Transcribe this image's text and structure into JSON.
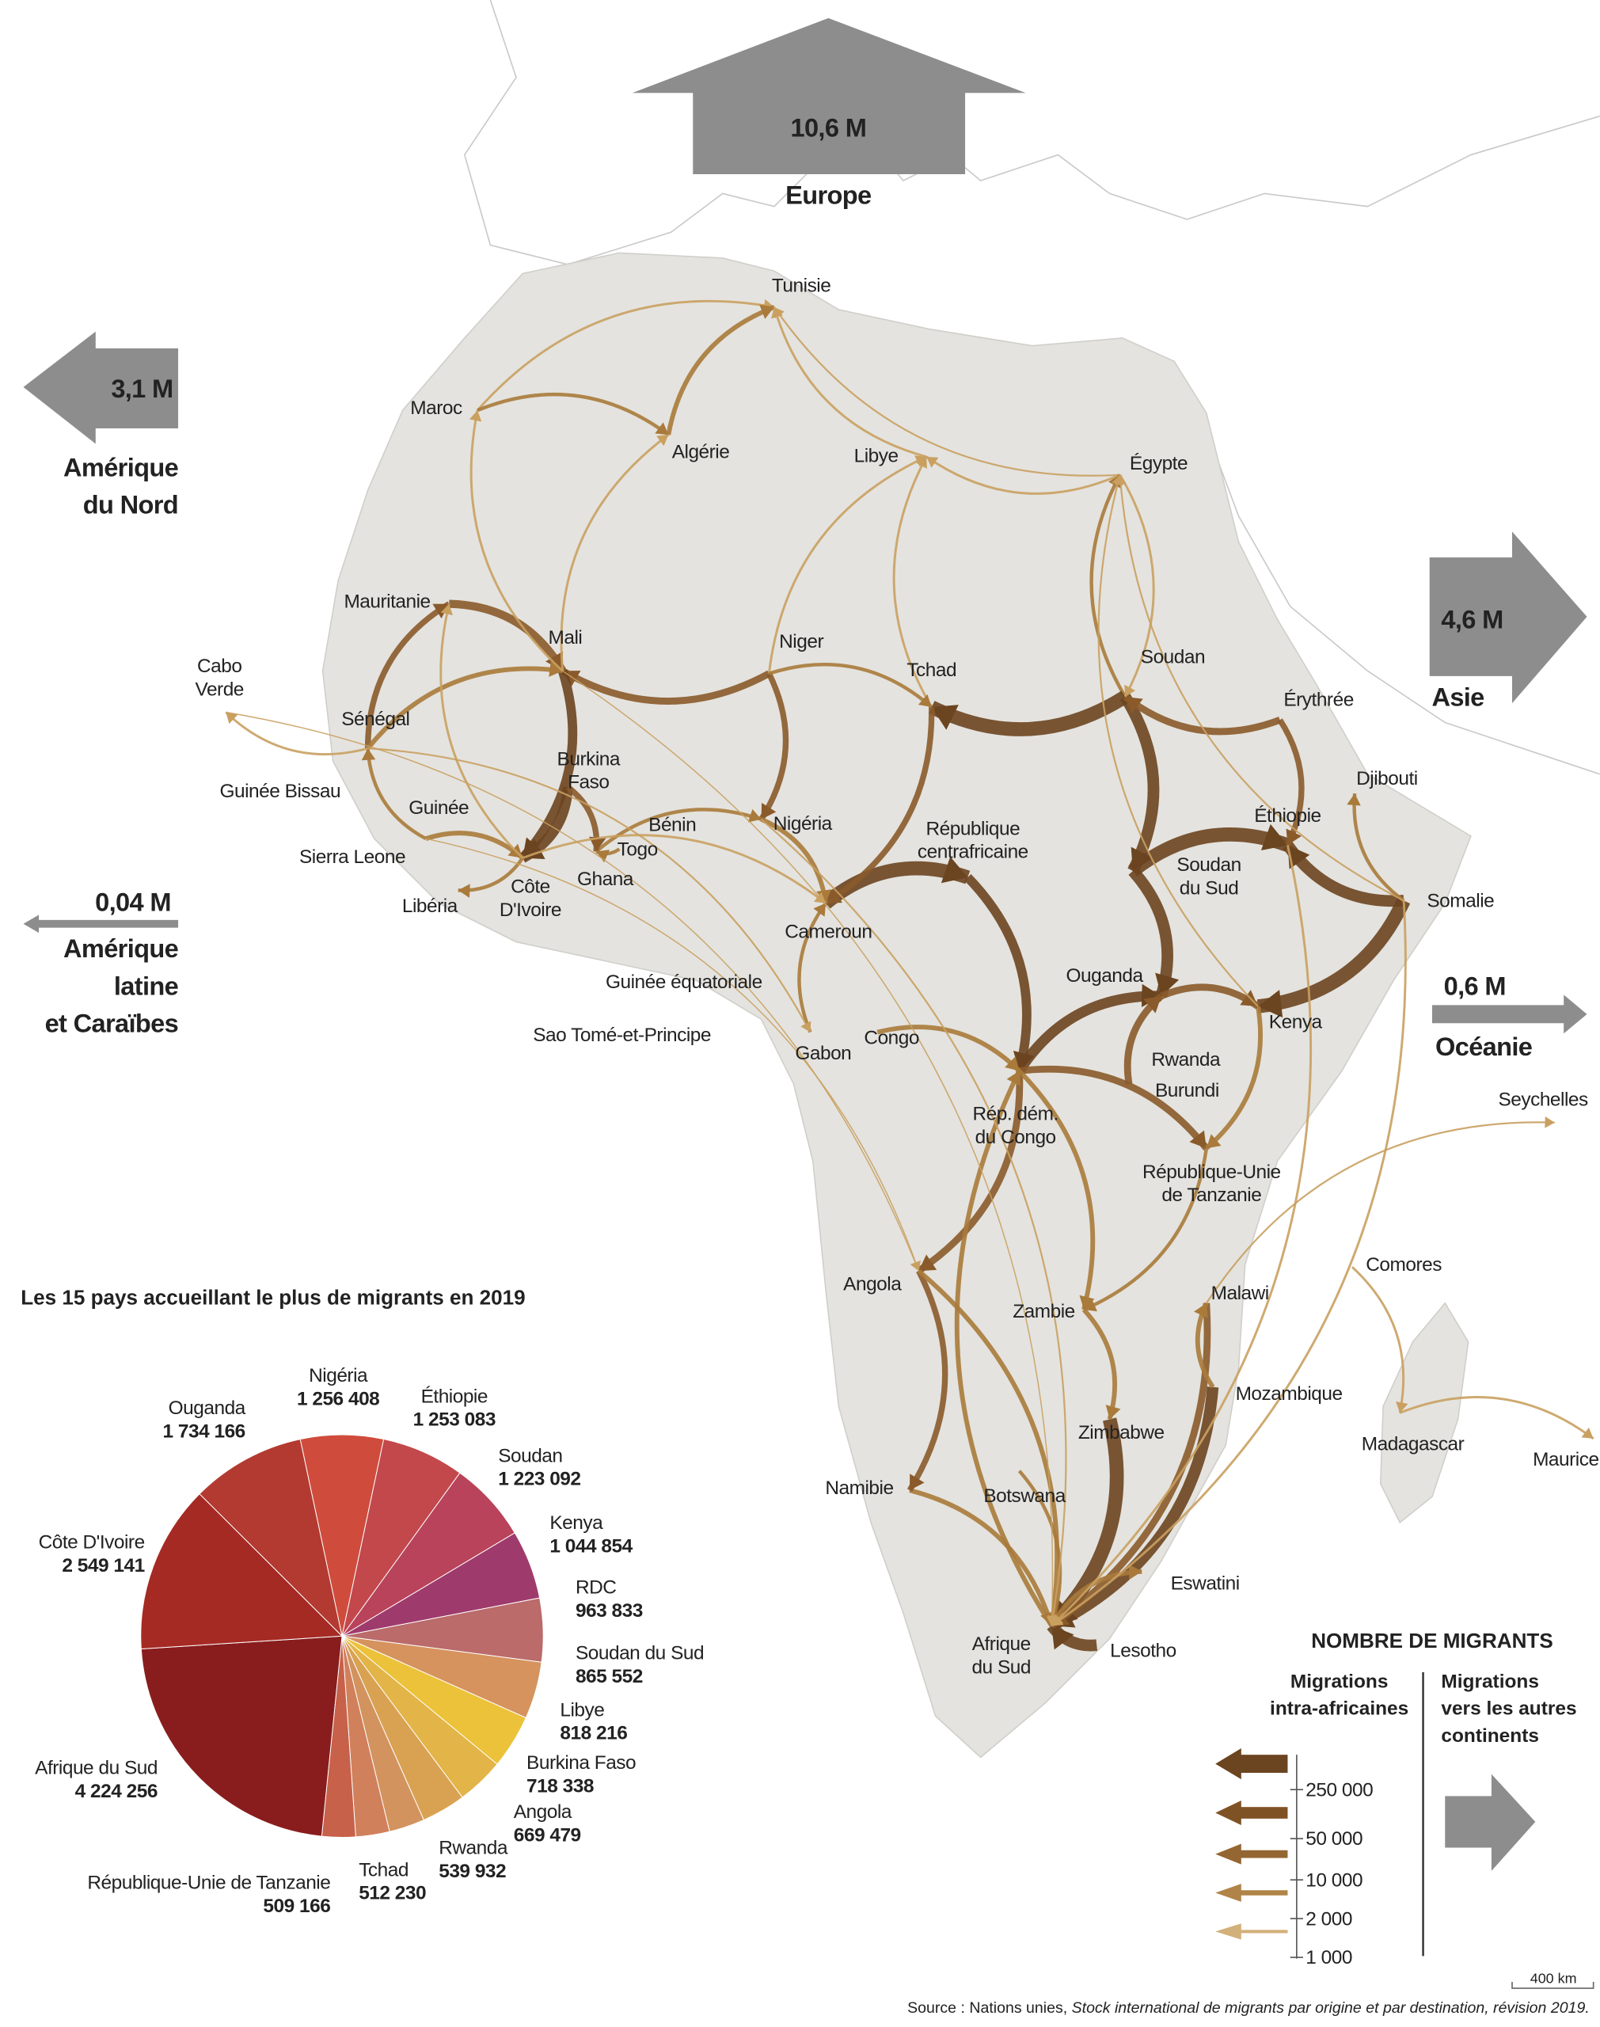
{
  "map": {
    "countries": [
      [
        "Tunisie"
      ],
      [
        "Maroc"
      ],
      [
        "Algérie"
      ],
      [
        "Libye"
      ],
      [
        "Égypte"
      ],
      [
        "Mauritanie"
      ],
      [
        "Mali"
      ],
      [
        "Niger"
      ],
      [
        "Tchad"
      ],
      [
        "Soudan"
      ],
      [
        "Érythrée"
      ],
      [
        "Cabo",
        "Verde"
      ],
      [
        "Sénégal"
      ],
      [
        "Burkina",
        "Faso"
      ],
      [
        "Djibouti"
      ],
      [
        "Guinée Bissau"
      ],
      [
        "Guinée"
      ],
      [
        "Bénin"
      ],
      [
        "Nigéria"
      ],
      [
        "Éthiopie"
      ],
      [
        "République",
        "centrafricaine"
      ],
      [
        "Sierra Leone"
      ],
      [
        "Togo"
      ],
      [
        "Soudan",
        "du Sud"
      ],
      [
        "Ghana"
      ],
      [
        "Côte",
        "D'Ivoire"
      ],
      [
        "Libéria"
      ],
      [
        "Somalie"
      ],
      [
        "Cameroun"
      ],
      [
        "Ouganda"
      ],
      [
        "Guinée équatoriale"
      ],
      [
        "Kenya"
      ],
      [
        "Sao Tomé-et-Principe"
      ],
      [
        "Congo"
      ],
      [
        "Gabon"
      ],
      [
        "Rwanda"
      ],
      [
        "Burundi"
      ],
      [
        "Seychelles"
      ],
      [
        "Rép. dém.",
        "du Congo"
      ],
      [
        "République-Unie",
        "de Tanzanie"
      ],
      [
        "Comores"
      ],
      [
        "Angola"
      ],
      [
        "Malawi"
      ],
      [
        "Zambie"
      ],
      [
        "Mozambique"
      ],
      [
        "Zimbabwe"
      ],
      [
        "Madagascar"
      ],
      [
        "Maurice"
      ],
      [
        "Namibie"
      ],
      [
        "Botswana"
      ],
      [
        "Eswatini"
      ],
      [
        "Afrique",
        "du Sud"
      ],
      [
        "Lesotho"
      ]
    ],
    "continents": [
      {
        "value": "10,6 M",
        "label": [
          "Europe"
        ]
      },
      {
        "value": "3,1 M",
        "label": [
          "Amérique",
          "du Nord"
        ]
      },
      {
        "value": "0,04 M",
        "label": [
          "Amérique",
          "latine",
          "et Caraïbes"
        ]
      },
      {
        "value": "4,6 M",
        "label": [
          "Asie"
        ]
      },
      {
        "value": "0,6 M",
        "label": [
          "Océanie"
        ]
      }
    ],
    "scale": "400 km"
  },
  "chart_data": {
    "type": "pie",
    "title": "Les 15 pays accueillant le plus de migrants en 2019",
    "categories": [
      "Nigéria",
      "Éthiopie",
      "Soudan",
      "Kenya",
      "RDC",
      "Soudan du Sud",
      "Libye",
      "Burkina Faso",
      "Angola",
      "Rwanda",
      "Tchad",
      "République-Unie de Tanzanie",
      "Afrique du Sud",
      "Côte D'Ivoire",
      "Ouganda"
    ],
    "values": [
      1256408,
      1253083,
      1223092,
      1044854,
      963833,
      865552,
      818216,
      718338,
      669479,
      539932,
      512230,
      509166,
      4224256,
      2549141,
      1734166
    ],
    "value_labels": [
      "1 256 408",
      "1 253 083",
      "1 223 092",
      "1 044 854",
      "963 833",
      "865 552",
      "818 216",
      "718 338",
      "669 479",
      "539 932",
      "512 230",
      "509 166",
      "4 224 256",
      "2 549 141",
      "1 734 166"
    ],
    "colors": [
      "#cf4c3d",
      "#c2484c",
      "#b8435a",
      "#9f3b6c",
      "#ba6b6a",
      "#d6935d",
      "#ecc23a",
      "#e3b447",
      "#d9a252",
      "#d2935e",
      "#d1805c",
      "#c7614a",
      "#891d1d",
      "#a52a24",
      "#b33a30"
    ]
  },
  "legend": {
    "title": "NOMBRE DE MIGRANTS",
    "intra": [
      "Migrations",
      "intra-africaines"
    ],
    "other": [
      "Migrations",
      "vers les autres",
      "continents"
    ],
    "levels": [
      "250 000",
      "50 000",
      "10 000",
      "2 000",
      "1 000"
    ]
  },
  "source": {
    "prefix": "Source : Nations unies, ",
    "work": "Stock international de migrants par origine et par destination, révision 2019."
  }
}
